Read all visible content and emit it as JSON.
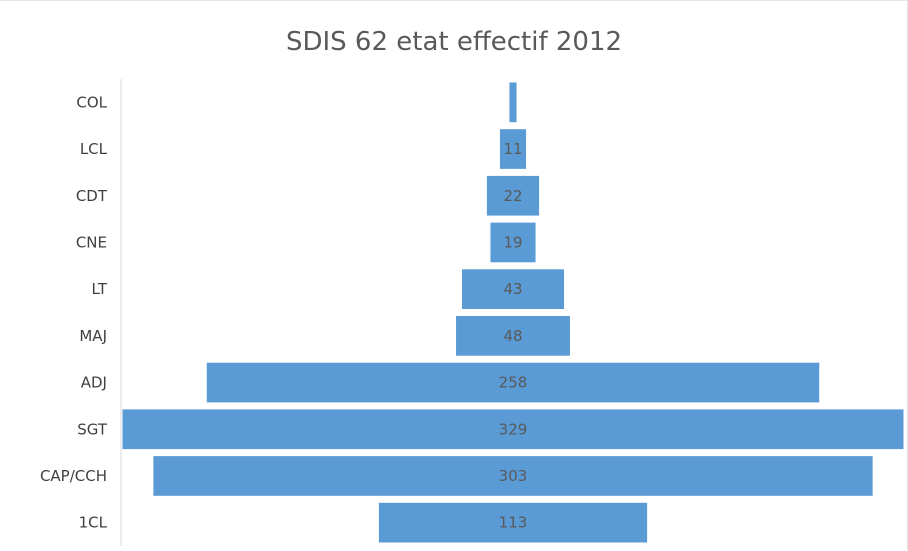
{
  "chart_data": {
    "type": "bar",
    "orientation": "horizontal",
    "layout": "centered-pyramid",
    "title": "SDIS 62 etat effectif 2012",
    "xlabel": "",
    "ylabel": "",
    "categories": [
      "COL",
      "LCL",
      "CDT",
      "CNE",
      "LT",
      "MAJ",
      "ADJ",
      "SGT",
      "CAP/CCH",
      "1CL"
    ],
    "values": [
      3,
      11,
      22,
      19,
      43,
      48,
      258,
      329,
      303,
      113
    ],
    "data_labels": [
      "",
      "11",
      "22",
      "19",
      "43",
      "48",
      "258",
      "329",
      "303",
      "113"
    ],
    "bar_color": "#5b9bd5",
    "grid": false,
    "legend": "none"
  }
}
